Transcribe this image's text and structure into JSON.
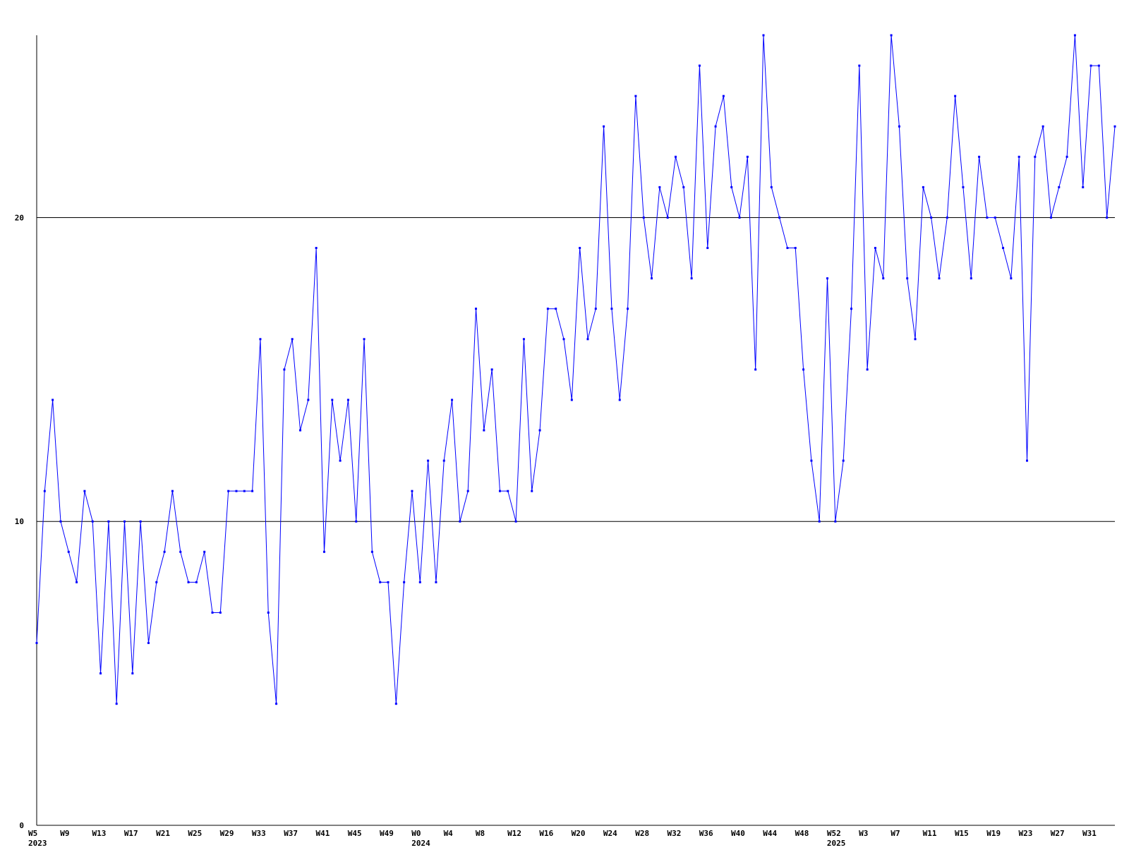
{
  "chart_data": {
    "type": "line",
    "title": "",
    "xlabel": "",
    "ylabel": "",
    "ylim": [
      0,
      26
    ],
    "yticks": [
      0,
      10,
      20
    ],
    "grid": "horizontal lines at y ticks",
    "legend": "none",
    "colors": {
      "line": "#0000ff",
      "marker": "#0000ff",
      "axis": "#000000",
      "grid": "#000000",
      "background": "#ffffff"
    },
    "x_tick_labels": [
      "W5",
      "W9",
      "W13",
      "W17",
      "W21",
      "W25",
      "W29",
      "W33",
      "W37",
      "W41",
      "W45",
      "W49",
      "W0",
      "W4",
      "W8",
      "W12",
      "W16",
      "W20",
      "W24",
      "W28",
      "W32",
      "W36",
      "W40",
      "W44",
      "W48",
      "W52",
      "W3",
      "W7",
      "W11",
      "W15",
      "W19",
      "W23",
      "W27",
      "W31"
    ],
    "year_labels": [
      {
        "label": "2023",
        "at": "W5"
      },
      {
        "label": "2024",
        "at": "W0"
      },
      {
        "label": "2025",
        "at": "W52"
      }
    ],
    "series": [
      {
        "values": [
          6,
          11,
          14,
          10,
          9,
          8,
          11,
          10,
          5,
          10,
          4,
          10,
          5,
          10,
          6,
          8,
          9,
          11,
          9,
          8,
          8,
          9,
          7,
          7,
          11,
          11,
          11,
          11,
          16,
          7,
          4,
          15,
          16,
          13,
          14,
          19,
          9,
          14,
          12,
          14,
          10,
          16,
          9,
          8,
          8,
          4,
          8,
          11,
          8,
          12,
          8,
          12,
          14,
          10,
          11,
          17,
          13,
          15,
          11,
          11,
          10,
          16,
          11,
          13,
          17,
          17,
          16,
          14,
          19,
          16,
          17,
          23,
          17,
          14,
          17,
          24,
          20,
          18,
          21,
          20,
          22,
          21,
          18,
          25,
          19,
          23,
          24,
          21,
          20,
          22,
          15,
          26,
          21,
          20,
          19,
          19,
          15,
          12,
          10,
          18,
          10,
          12,
          17,
          25,
          15,
          19,
          18,
          26,
          23,
          18,
          16,
          21,
          20,
          18,
          20,
          24,
          21,
          18,
          22,
          20,
          20,
          19,
          18,
          22,
          12,
          22,
          23,
          20,
          21,
          22,
          26,
          21,
          25,
          25,
          20,
          23
        ]
      }
    ]
  }
}
